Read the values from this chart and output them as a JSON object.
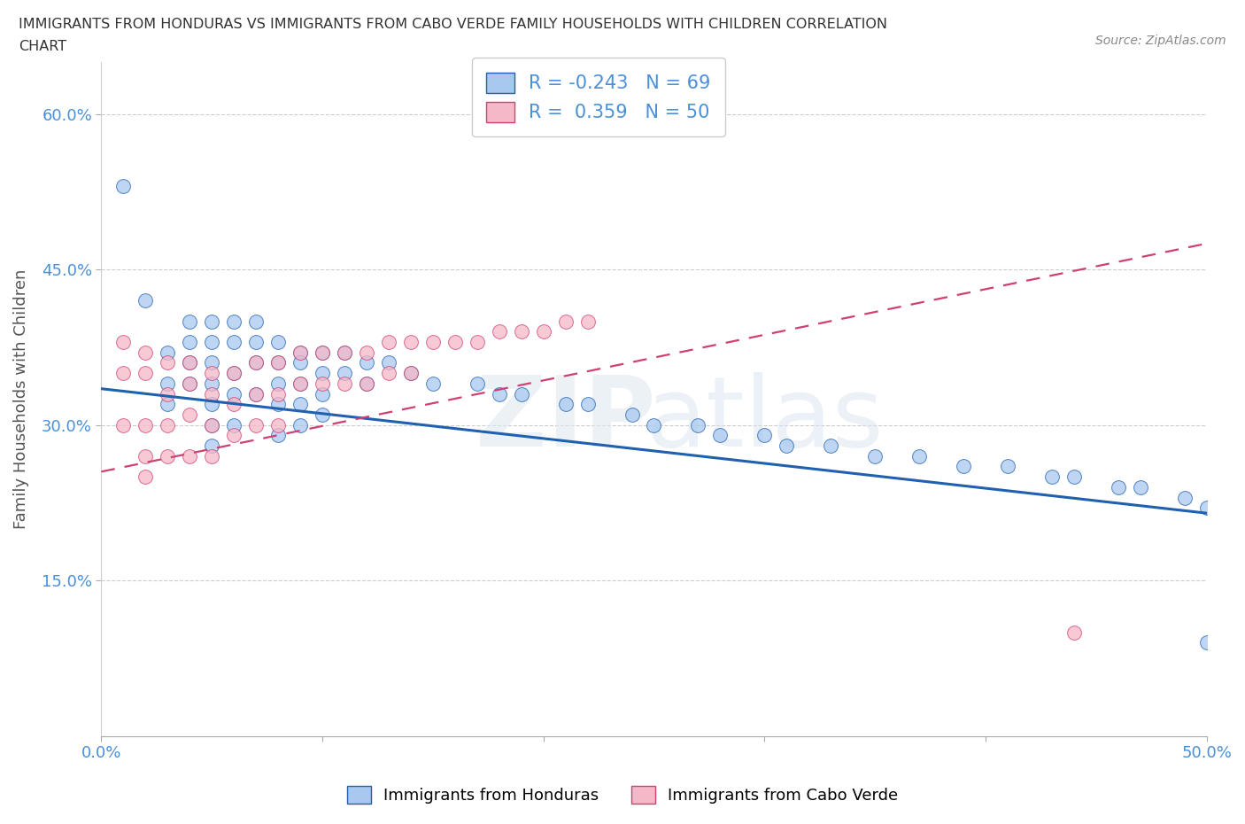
{
  "title_line1": "IMMIGRANTS FROM HONDURAS VS IMMIGRANTS FROM CABO VERDE FAMILY HOUSEHOLDS WITH CHILDREN CORRELATION",
  "title_line2": "CHART",
  "source": "Source: ZipAtlas.com",
  "xlabel": "Immigrants from Honduras",
  "xlabel2": "Immigrants from Cabo Verde",
  "ylabel": "Family Households with Children",
  "xlim": [
    0.0,
    0.5
  ],
  "ylim": [
    0.0,
    0.65
  ],
  "xticks": [
    0.0,
    0.1,
    0.2,
    0.3,
    0.4,
    0.5
  ],
  "xticklabels": [
    "0.0%",
    "",
    "",
    "",
    "",
    "50.0%"
  ],
  "yticks": [
    0.15,
    0.3,
    0.45,
    0.6
  ],
  "yticklabels": [
    "15.0%",
    "30.0%",
    "45.0%",
    "60.0%"
  ],
  "R_honduras": -0.243,
  "N_honduras": 69,
  "R_caboverde": 0.359,
  "N_caboverde": 50,
  "color_honduras": "#a8c8f0",
  "color_caboverde": "#f5b8c8",
  "line_color_honduras": "#2060b0",
  "line_color_caboverde": "#d04070",
  "background_color": "#ffffff",
  "honduras_x": [
    0.01,
    0.02,
    0.03,
    0.03,
    0.03,
    0.04,
    0.04,
    0.04,
    0.04,
    0.05,
    0.05,
    0.05,
    0.05,
    0.05,
    0.05,
    0.05,
    0.06,
    0.06,
    0.06,
    0.06,
    0.06,
    0.07,
    0.07,
    0.07,
    0.07,
    0.08,
    0.08,
    0.08,
    0.08,
    0.08,
    0.09,
    0.09,
    0.09,
    0.09,
    0.09,
    0.1,
    0.1,
    0.1,
    0.1,
    0.11,
    0.11,
    0.12,
    0.12,
    0.13,
    0.14,
    0.15,
    0.17,
    0.18,
    0.19,
    0.21,
    0.22,
    0.24,
    0.25,
    0.27,
    0.28,
    0.3,
    0.31,
    0.33,
    0.35,
    0.37,
    0.39,
    0.41,
    0.43,
    0.44,
    0.46,
    0.47,
    0.49,
    0.5,
    0.5
  ],
  "honduras_y": [
    0.53,
    0.42,
    0.34,
    0.32,
    0.37,
    0.4,
    0.38,
    0.36,
    0.34,
    0.4,
    0.38,
    0.36,
    0.34,
    0.32,
    0.3,
    0.28,
    0.4,
    0.38,
    0.35,
    0.33,
    0.3,
    0.4,
    0.38,
    0.36,
    0.33,
    0.38,
    0.36,
    0.34,
    0.32,
    0.29,
    0.37,
    0.36,
    0.34,
    0.32,
    0.3,
    0.37,
    0.35,
    0.33,
    0.31,
    0.37,
    0.35,
    0.36,
    0.34,
    0.36,
    0.35,
    0.34,
    0.34,
    0.33,
    0.33,
    0.32,
    0.32,
    0.31,
    0.3,
    0.3,
    0.29,
    0.29,
    0.28,
    0.28,
    0.27,
    0.27,
    0.26,
    0.26,
    0.25,
    0.25,
    0.24,
    0.24,
    0.23,
    0.22,
    0.09
  ],
  "caboverde_x": [
    0.01,
    0.01,
    0.01,
    0.02,
    0.02,
    0.02,
    0.02,
    0.02,
    0.03,
    0.03,
    0.03,
    0.03,
    0.04,
    0.04,
    0.04,
    0.04,
    0.05,
    0.05,
    0.05,
    0.05,
    0.06,
    0.06,
    0.06,
    0.07,
    0.07,
    0.07,
    0.08,
    0.08,
    0.08,
    0.09,
    0.09,
    0.1,
    0.1,
    0.11,
    0.11,
    0.12,
    0.12,
    0.13,
    0.13,
    0.14,
    0.14,
    0.15,
    0.16,
    0.17,
    0.18,
    0.19,
    0.2,
    0.21,
    0.22,
    0.44
  ],
  "caboverde_y": [
    0.38,
    0.35,
    0.3,
    0.37,
    0.35,
    0.3,
    0.27,
    0.25,
    0.36,
    0.33,
    0.3,
    0.27,
    0.36,
    0.34,
    0.31,
    0.27,
    0.35,
    0.33,
    0.3,
    0.27,
    0.35,
    0.32,
    0.29,
    0.36,
    0.33,
    0.3,
    0.36,
    0.33,
    0.3,
    0.37,
    0.34,
    0.37,
    0.34,
    0.37,
    0.34,
    0.37,
    0.34,
    0.38,
    0.35,
    0.38,
    0.35,
    0.38,
    0.38,
    0.38,
    0.39,
    0.39,
    0.39,
    0.4,
    0.4,
    0.1
  ],
  "trend_h_x0": 0.0,
  "trend_h_y0": 0.335,
  "trend_h_x1": 0.5,
  "trend_h_y1": 0.215,
  "trend_c_x0": 0.0,
  "trend_c_y0": 0.255,
  "trend_c_x1": 0.5,
  "trend_c_y1": 0.475
}
